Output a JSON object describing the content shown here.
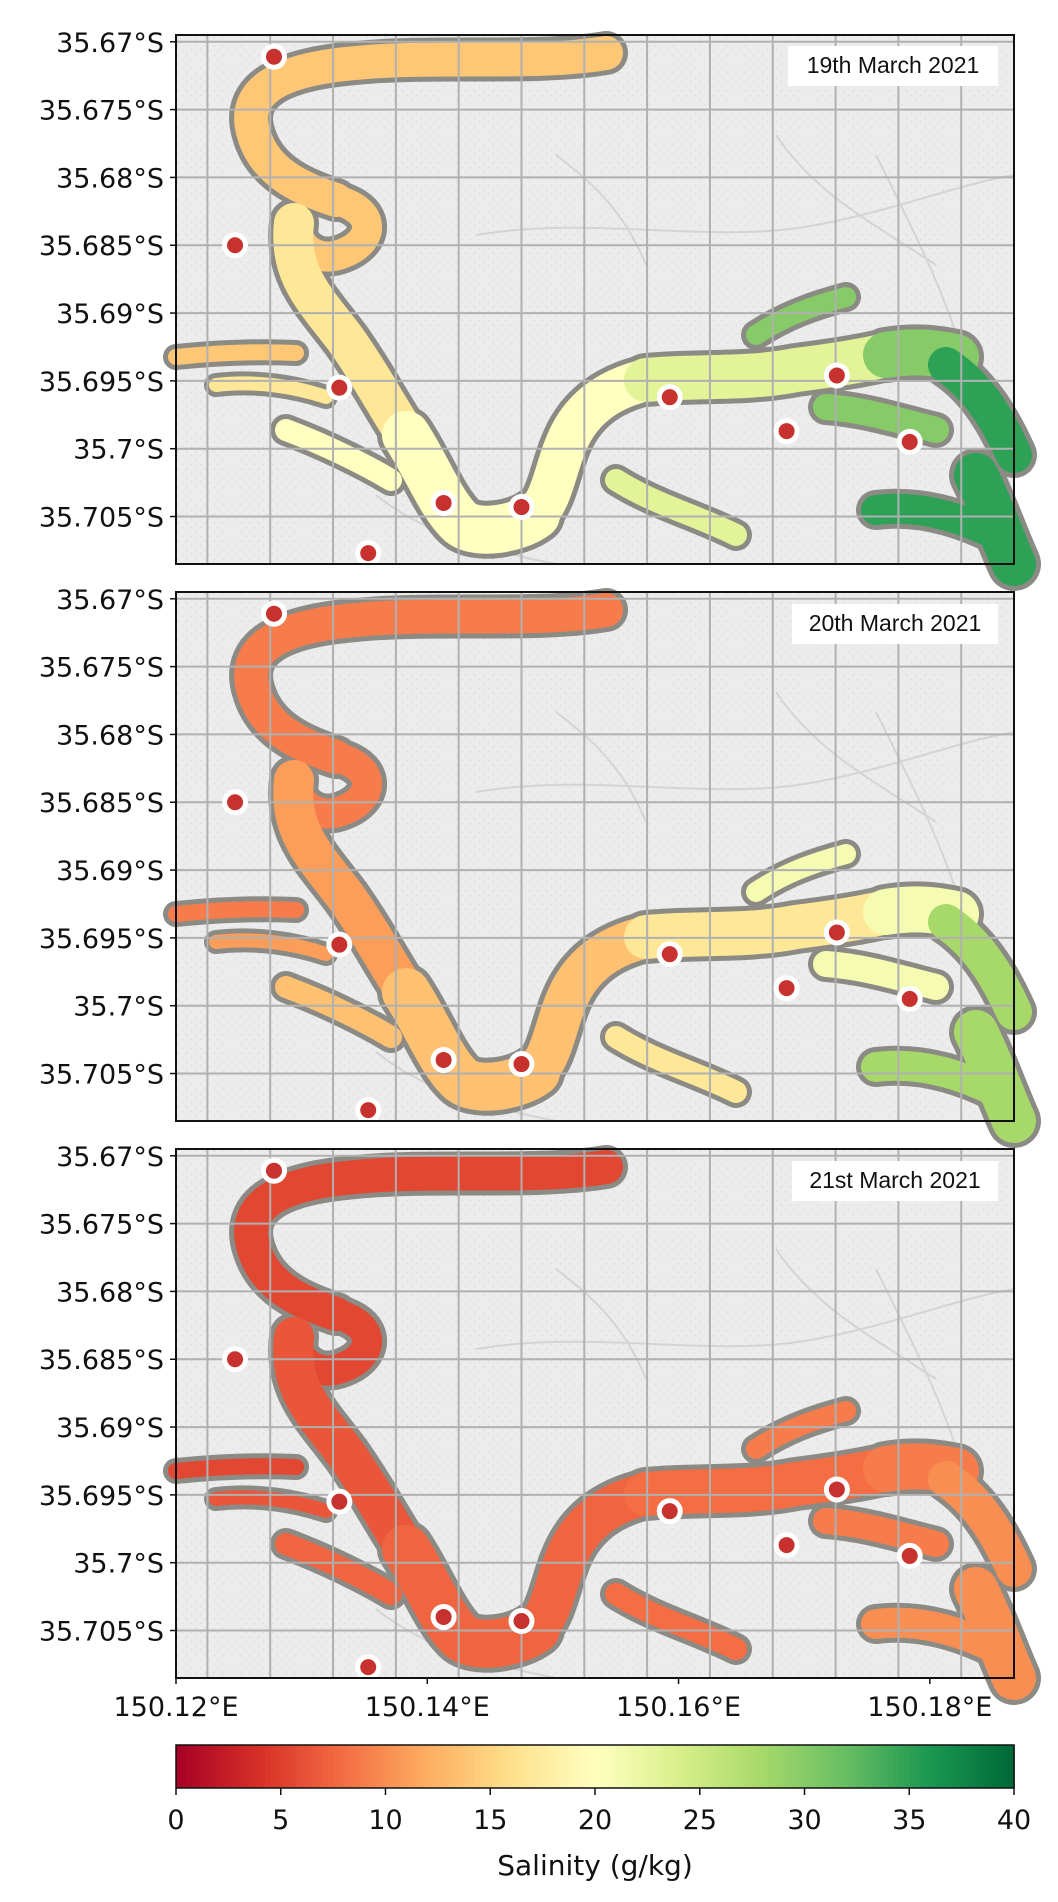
{
  "maps": [
    {
      "date": "19th March 2021",
      "salinity": {
        "west": 14,
        "bend": 17,
        "bottom": 20,
        "middle": 23,
        "east": 30,
        "mouth": 35
      }
    },
    {
      "date": "20th March 2021",
      "salinity": {
        "west": 9,
        "bend": 11,
        "bottom": 13.5,
        "middle": 17,
        "east": 21,
        "mouth": 28
      }
    },
    {
      "date": "21st March 2021",
      "salinity": {
        "west": 5.5,
        "bend": 6.5,
        "bottom": 7.5,
        "middle": 8,
        "east": 9,
        "mouth": 10
      }
    }
  ],
  "stations": [
    {
      "lon": 150.1278,
      "lat": -35.6711
    },
    {
      "lon": 150.1247,
      "lat": -35.685
    },
    {
      "lon": 150.133,
      "lat": -35.6955
    },
    {
      "lon": 150.1353,
      "lat": -35.7077
    },
    {
      "lon": 150.1413,
      "lat": -35.704
    },
    {
      "lon": 150.1475,
      "lat": -35.7043
    },
    {
      "lon": 150.1593,
      "lat": -35.6962
    },
    {
      "lon": 150.1686,
      "lat": -35.6987
    },
    {
      "lon": 150.1726,
      "lat": -35.6946
    },
    {
      "lon": 150.1784,
      "lat": -35.6995
    }
  ],
  "axes": {
    "lon_range": [
      150.12,
      150.1867
    ],
    "lat_range": [
      -35.6695,
      -35.7085
    ],
    "lat_ticks": [
      -35.67,
      -35.675,
      -35.68,
      -35.685,
      -35.69,
      -35.695,
      -35.7,
      -35.705
    ],
    "lat_tick_labels": [
      "35.67°S",
      "35.675°S",
      "35.68°S",
      "35.685°S",
      "35.69°S",
      "35.695°S",
      "35.7°S",
      "35.705°S"
    ],
    "lon_ticks": [
      150.12,
      150.14,
      150.16,
      150.18
    ],
    "lon_tick_labels": [
      "150.12°E",
      "150.14°E",
      "150.16°E",
      "150.18°E"
    ],
    "grid": true
  },
  "colorbar": {
    "label": "Salinity (g/kg)",
    "min": 0,
    "max": 40,
    "ticks": [
      0,
      5,
      10,
      15,
      20,
      25,
      30,
      35,
      40
    ],
    "tick_labels": [
      "0",
      "5",
      "10",
      "15",
      "20",
      "25",
      "30",
      "35",
      "40"
    ],
    "colormap": "RdYlGn"
  },
  "colors": {
    "land": "#ececec",
    "channel": "#8c8a84",
    "station_fill": "#c8322e",
    "station_ring": "#ffffff",
    "grid": "#b0b0b0"
  }
}
